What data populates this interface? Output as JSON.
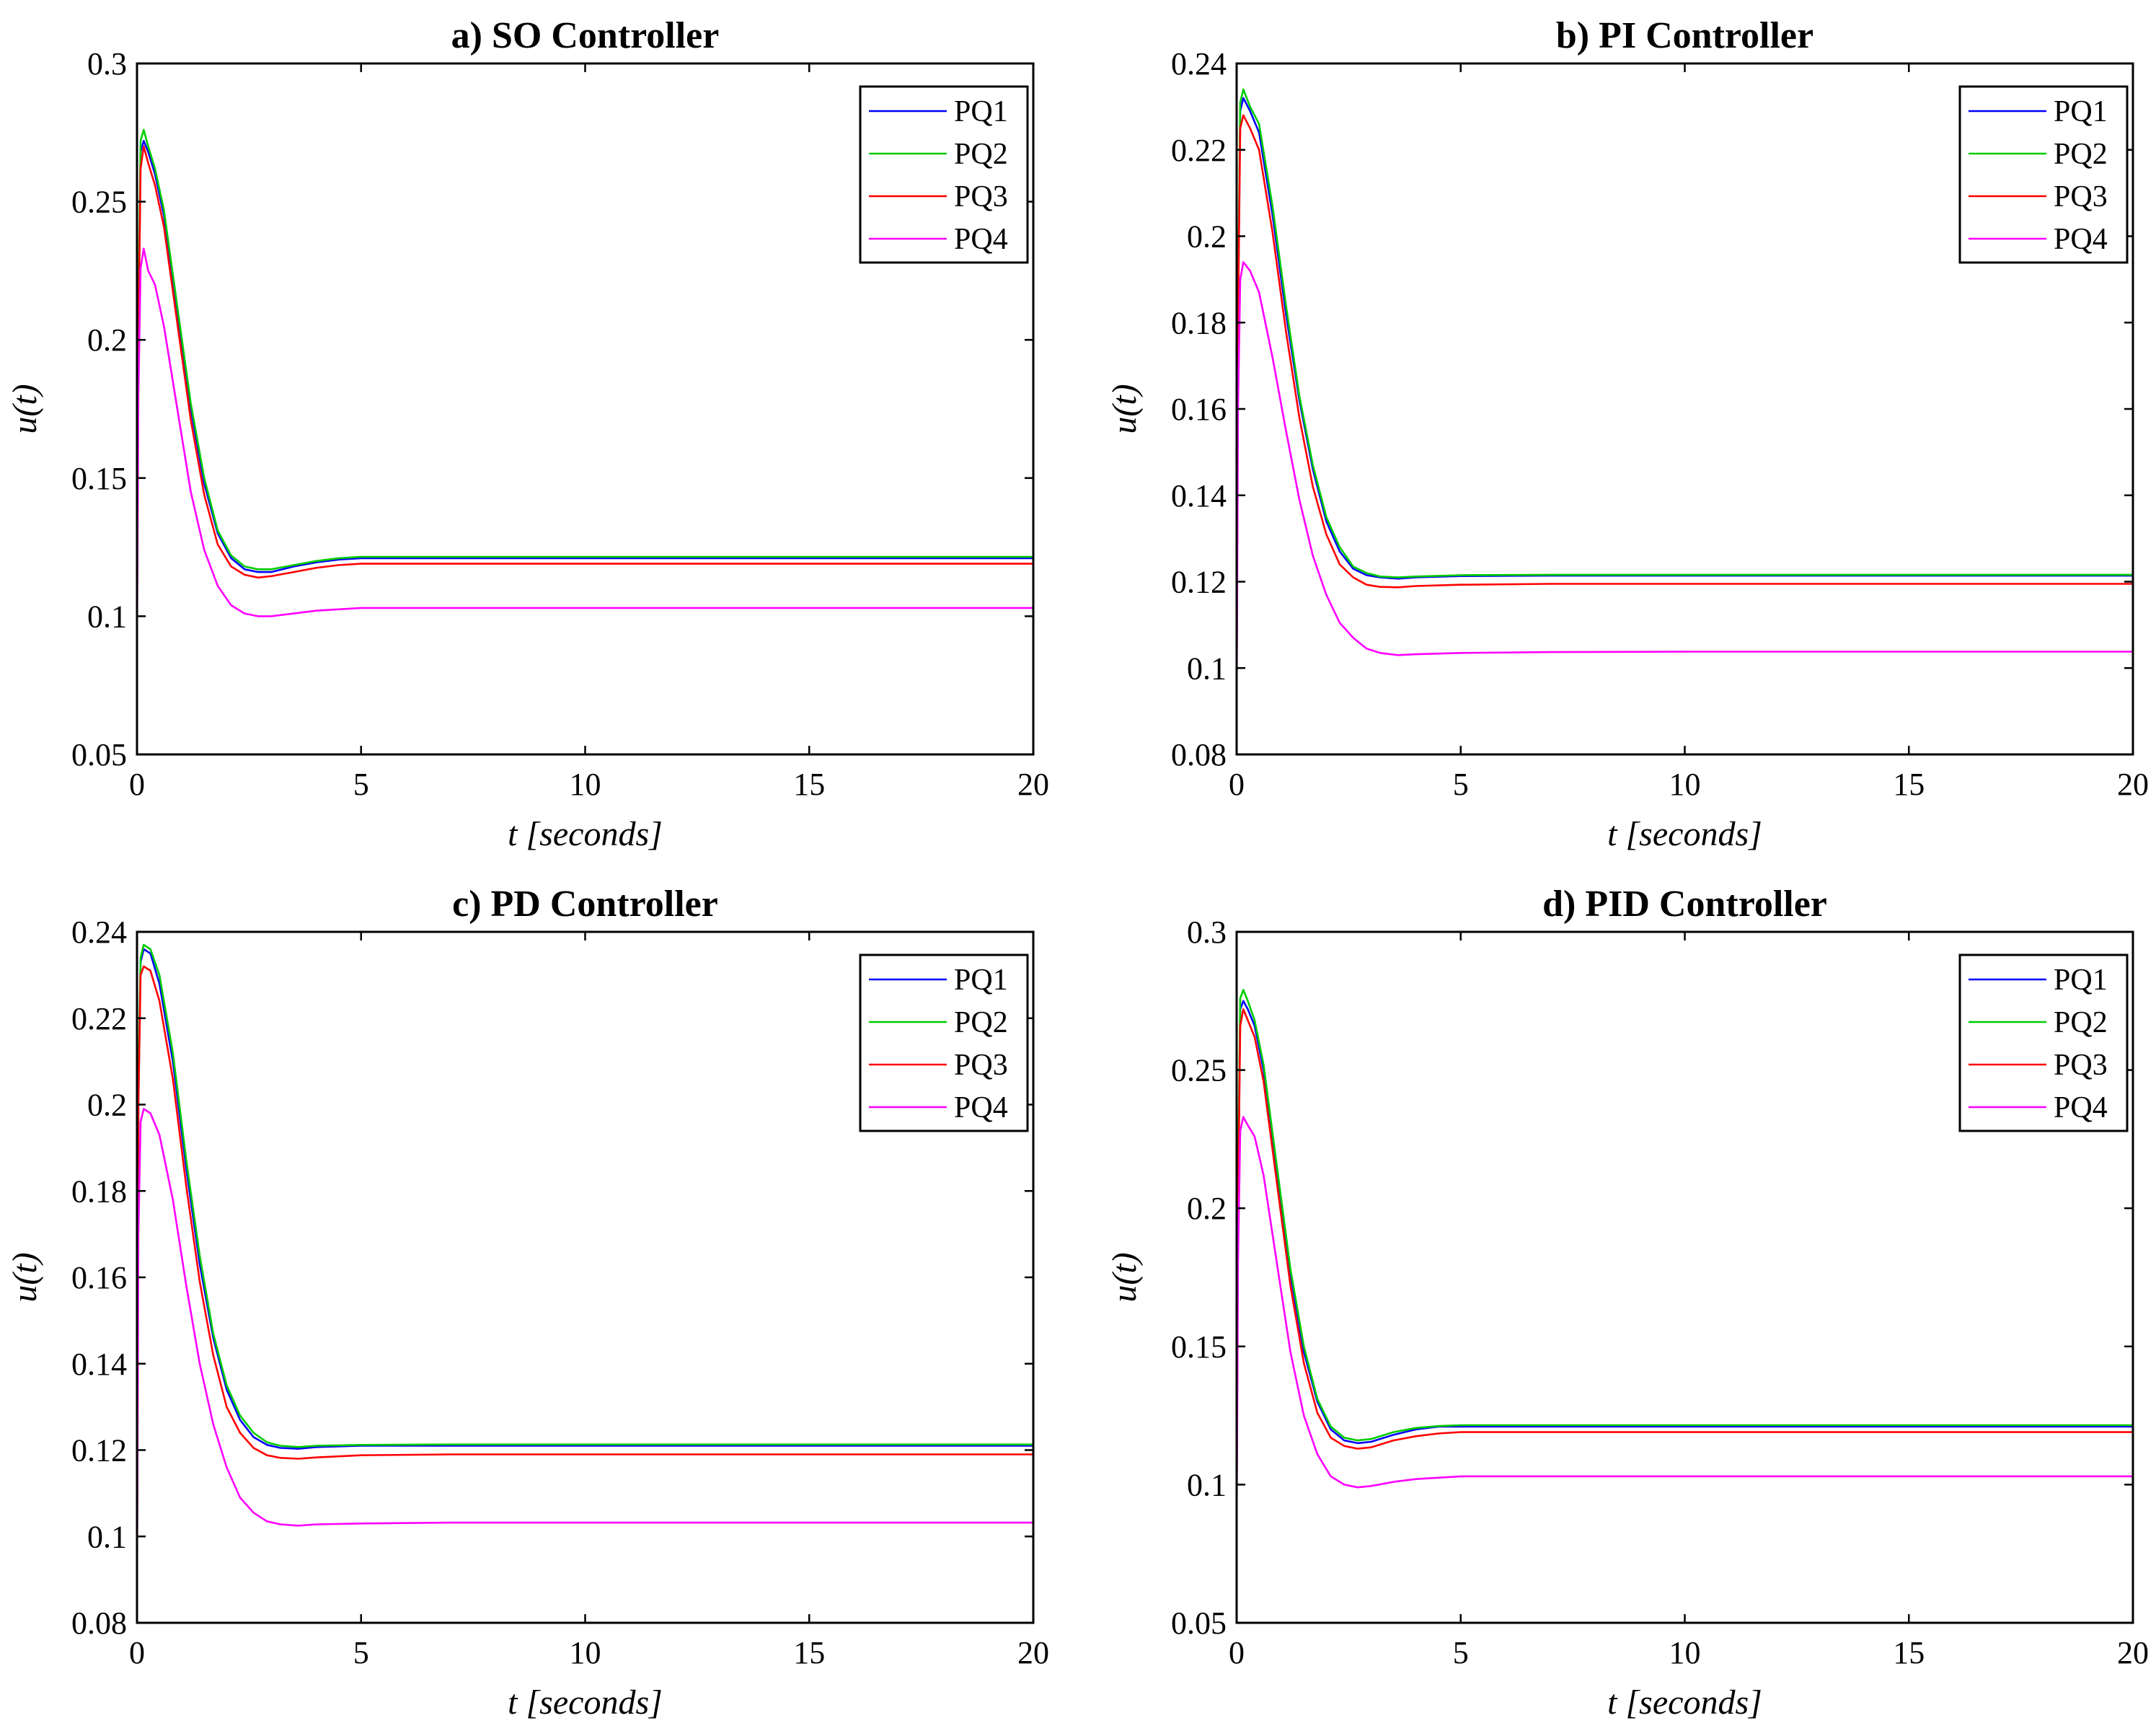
{
  "chart_data": [
    {
      "type": "line",
      "title": "a) SO Controller",
      "xlabel": "t [seconds]",
      "ylabel": "u(t)",
      "xlim": [
        0,
        20
      ],
      "ylim": [
        0.05,
        0.3
      ],
      "xticks": [
        0,
        5,
        10,
        15,
        20
      ],
      "yticks": [
        0.05,
        0.1,
        0.15,
        0.2,
        0.25,
        0.3
      ],
      "ytick_labels": [
        "0.05",
        "0.1",
        "0.15",
        "0.2",
        "0.25",
        "0.3"
      ],
      "legend": "top-right",
      "series": [
        {
          "name": "PQ1",
          "color": "#0000ff",
          "x": [
            0,
            0.03,
            0.08,
            0.15,
            0.25,
            0.4,
            0.6,
            0.9,
            1.2,
            1.5,
            1.8,
            2.1,
            2.4,
            2.7,
            3.0,
            3.5,
            4.0,
            4.5,
            5.0,
            7.0,
            10.0,
            15.0,
            20.0
          ],
          "y": [
            0.1,
            0.2,
            0.268,
            0.272,
            0.268,
            0.26,
            0.245,
            0.21,
            0.175,
            0.148,
            0.13,
            0.121,
            0.117,
            0.116,
            0.116,
            0.118,
            0.1195,
            0.1205,
            0.121,
            0.121,
            0.121,
            0.121,
            0.121
          ]
        },
        {
          "name": "PQ2",
          "color": "#00cc00",
          "x": [
            0,
            0.03,
            0.08,
            0.15,
            0.25,
            0.4,
            0.6,
            0.9,
            1.2,
            1.5,
            1.8,
            2.1,
            2.4,
            2.7,
            3.0,
            3.5,
            4.0,
            4.5,
            5.0,
            7.0,
            10.0,
            15.0,
            20.0
          ],
          "y": [
            0.1,
            0.21,
            0.272,
            0.276,
            0.27,
            0.262,
            0.247,
            0.212,
            0.177,
            0.15,
            0.131,
            0.122,
            0.118,
            0.117,
            0.117,
            0.1185,
            0.12,
            0.121,
            0.1215,
            0.1215,
            0.1215,
            0.1215,
            0.1215
          ]
        },
        {
          "name": "PQ3",
          "color": "#ff0000",
          "x": [
            0,
            0.03,
            0.08,
            0.15,
            0.25,
            0.4,
            0.6,
            0.9,
            1.2,
            1.5,
            1.8,
            2.1,
            2.4,
            2.7,
            3.0,
            3.5,
            4.0,
            4.5,
            5.0,
            7.0,
            10.0,
            15.0,
            20.0
          ],
          "y": [
            0.1,
            0.2,
            0.262,
            0.27,
            0.264,
            0.256,
            0.241,
            0.206,
            0.171,
            0.144,
            0.126,
            0.118,
            0.115,
            0.114,
            0.1145,
            0.116,
            0.1175,
            0.1185,
            0.119,
            0.119,
            0.119,
            0.119,
            0.119
          ]
        },
        {
          "name": "PQ4",
          "color": "#ff00ff",
          "x": [
            0,
            0.03,
            0.08,
            0.15,
            0.25,
            0.4,
            0.6,
            0.9,
            1.2,
            1.5,
            1.8,
            2.1,
            2.4,
            2.7,
            3.0,
            3.5,
            4.0,
            4.5,
            5.0,
            7.0,
            10.0,
            15.0,
            20.0
          ],
          "y": [
            0.09,
            0.18,
            0.226,
            0.233,
            0.225,
            0.22,
            0.205,
            0.175,
            0.145,
            0.124,
            0.111,
            0.104,
            0.101,
            0.1,
            0.1,
            0.101,
            0.102,
            0.1025,
            0.103,
            0.103,
            0.103,
            0.103,
            0.103
          ]
        }
      ]
    },
    {
      "type": "line",
      "title": "b) PI Controller",
      "xlabel": "t [seconds]",
      "ylabel": "u(t)",
      "xlim": [
        0,
        20
      ],
      "ylim": [
        0.08,
        0.24
      ],
      "xticks": [
        0,
        5,
        10,
        15,
        20
      ],
      "yticks": [
        0.08,
        0.1,
        0.12,
        0.14,
        0.16,
        0.18,
        0.2,
        0.22,
        0.24
      ],
      "ytick_labels": [
        "0.08",
        "0.1",
        "0.12",
        "0.14",
        "0.16",
        "0.18",
        "0.2",
        "0.22",
        "0.24"
      ],
      "legend": "top-right",
      "series": [
        {
          "name": "PQ1",
          "color": "#0000ff",
          "x": [
            0,
            0.03,
            0.08,
            0.15,
            0.3,
            0.5,
            0.8,
            1.1,
            1.4,
            1.7,
            2.0,
            2.3,
            2.6,
            2.9,
            3.2,
            3.6,
            4.0,
            5.0,
            7.0,
            10.0,
            15.0,
            20.0
          ],
          "y": [
            0.095,
            0.18,
            0.229,
            0.232,
            0.229,
            0.224,
            0.205,
            0.182,
            0.162,
            0.146,
            0.134,
            0.127,
            0.123,
            0.1215,
            0.121,
            0.1207,
            0.121,
            0.1213,
            0.1214,
            0.1214,
            0.1214,
            0.1214
          ]
        },
        {
          "name": "PQ2",
          "color": "#00cc00",
          "x": [
            0,
            0.03,
            0.08,
            0.15,
            0.3,
            0.5,
            0.8,
            1.1,
            1.4,
            1.7,
            2.0,
            2.3,
            2.6,
            2.9,
            3.2,
            3.6,
            4.0,
            5.0,
            7.0,
            10.0,
            15.0,
            20.0
          ],
          "y": [
            0.095,
            0.185,
            0.231,
            0.234,
            0.23,
            0.226,
            0.207,
            0.184,
            0.163,
            0.147,
            0.135,
            0.128,
            0.1235,
            0.122,
            0.1212,
            0.121,
            0.1212,
            0.1215,
            0.1216,
            0.1216,
            0.1216,
            0.1216
          ]
        },
        {
          "name": "PQ3",
          "color": "#ff0000",
          "x": [
            0,
            0.03,
            0.08,
            0.15,
            0.3,
            0.5,
            0.8,
            1.1,
            1.4,
            1.7,
            2.0,
            2.3,
            2.6,
            2.9,
            3.2,
            3.6,
            4.0,
            5.0,
            7.0,
            10.0,
            15.0,
            20.0
          ],
          "y": [
            0.095,
            0.18,
            0.225,
            0.228,
            0.225,
            0.22,
            0.201,
            0.178,
            0.158,
            0.142,
            0.131,
            0.124,
            0.121,
            0.1193,
            0.1188,
            0.1187,
            0.119,
            0.1193,
            0.1195,
            0.1195,
            0.1195,
            0.1195
          ]
        },
        {
          "name": "PQ4",
          "color": "#ff00ff",
          "x": [
            0,
            0.03,
            0.08,
            0.15,
            0.3,
            0.5,
            0.8,
            1.1,
            1.4,
            1.7,
            2.0,
            2.3,
            2.6,
            2.9,
            3.2,
            3.6,
            4.0,
            5.0,
            7.0,
            10.0,
            15.0,
            20.0
          ],
          "y": [
            0.09,
            0.16,
            0.19,
            0.194,
            0.192,
            0.187,
            0.172,
            0.155,
            0.139,
            0.126,
            0.117,
            0.1105,
            0.107,
            0.1045,
            0.1035,
            0.103,
            0.1032,
            0.1035,
            0.1037,
            0.1038,
            0.1038,
            0.1038
          ]
        }
      ]
    },
    {
      "type": "line",
      "title": "c) PD Controller",
      "xlabel": "t [seconds]",
      "ylabel": "u(t)",
      "xlim": [
        0,
        20
      ],
      "ylim": [
        0.08,
        0.24
      ],
      "xticks": [
        0,
        5,
        10,
        15,
        20
      ],
      "yticks": [
        0.08,
        0.1,
        0.12,
        0.14,
        0.16,
        0.18,
        0.2,
        0.22,
        0.24
      ],
      "ytick_labels": [
        "0.08",
        "0.1",
        "0.12",
        "0.14",
        "0.16",
        "0.18",
        "0.2",
        "0.22",
        "0.24"
      ],
      "legend": "top-right",
      "series": [
        {
          "name": "PQ1",
          "color": "#0000ff",
          "x": [
            0,
            0.03,
            0.08,
            0.15,
            0.3,
            0.5,
            0.8,
            1.1,
            1.4,
            1.7,
            2.0,
            2.3,
            2.6,
            2.9,
            3.2,
            3.6,
            4.0,
            5.0,
            7.0,
            10.0,
            15.0,
            20.0
          ],
          "y": [
            0.09,
            0.2,
            0.233,
            0.236,
            0.235,
            0.228,
            0.21,
            0.185,
            0.163,
            0.146,
            0.134,
            0.127,
            0.123,
            0.1212,
            0.1205,
            0.1203,
            0.1207,
            0.121,
            0.121,
            0.121,
            0.121,
            0.121
          ]
        },
        {
          "name": "PQ2",
          "color": "#00cc00",
          "x": [
            0,
            0.03,
            0.08,
            0.15,
            0.3,
            0.5,
            0.8,
            1.1,
            1.4,
            1.7,
            2.0,
            2.3,
            2.6,
            2.9,
            3.2,
            3.6,
            4.0,
            5.0,
            7.0,
            10.0,
            15.0,
            20.0
          ],
          "y": [
            0.09,
            0.205,
            0.234,
            0.237,
            0.236,
            0.23,
            0.212,
            0.187,
            0.165,
            0.147,
            0.135,
            0.128,
            0.124,
            0.1218,
            0.121,
            0.1207,
            0.121,
            0.1212,
            0.1213,
            0.1213,
            0.1213,
            0.1213
          ]
        },
        {
          "name": "PQ3",
          "color": "#ff0000",
          "x": [
            0,
            0.03,
            0.08,
            0.15,
            0.3,
            0.5,
            0.8,
            1.1,
            1.4,
            1.7,
            2.0,
            2.3,
            2.6,
            2.9,
            3.2,
            3.6,
            4.0,
            5.0,
            7.0,
            10.0,
            15.0,
            20.0
          ],
          "y": [
            0.09,
            0.2,
            0.23,
            0.232,
            0.231,
            0.224,
            0.206,
            0.181,
            0.159,
            0.142,
            0.13,
            0.124,
            0.1205,
            0.1188,
            0.1182,
            0.118,
            0.1183,
            0.1188,
            0.119,
            0.119,
            0.119,
            0.119
          ]
        },
        {
          "name": "PQ4",
          "color": "#ff00ff",
          "x": [
            0,
            0.03,
            0.08,
            0.15,
            0.3,
            0.5,
            0.8,
            1.1,
            1.4,
            1.7,
            2.0,
            2.3,
            2.6,
            2.9,
            3.2,
            3.6,
            4.0,
            5.0,
            7.0,
            10.0,
            15.0,
            20.0
          ],
          "y": [
            0.088,
            0.17,
            0.196,
            0.199,
            0.198,
            0.193,
            0.178,
            0.158,
            0.14,
            0.126,
            0.116,
            0.109,
            0.1055,
            0.1035,
            0.1028,
            0.1025,
            0.1028,
            0.103,
            0.1032,
            0.1032,
            0.1032,
            0.1032
          ]
        }
      ]
    },
    {
      "type": "line",
      "title": "d) PID Controller",
      "xlabel": "t [seconds]",
      "ylabel": "u(t)",
      "xlim": [
        0,
        20
      ],
      "ylim": [
        0.05,
        0.3
      ],
      "xticks": [
        0,
        5,
        10,
        15,
        20
      ],
      "yticks": [
        0.05,
        0.1,
        0.15,
        0.2,
        0.25,
        0.3
      ],
      "ytick_labels": [
        "0.05",
        "0.1",
        "0.15",
        "0.2",
        "0.25",
        "0.3"
      ],
      "legend": "top-right",
      "series": [
        {
          "name": "PQ1",
          "color": "#0000ff",
          "x": [
            0,
            0.03,
            0.08,
            0.15,
            0.25,
            0.4,
            0.6,
            0.9,
            1.2,
            1.5,
            1.8,
            2.1,
            2.4,
            2.7,
            3.0,
            3.5,
            4.0,
            4.5,
            5.0,
            7.0,
            10.0,
            15.0,
            20.0
          ],
          "y": [
            0.09,
            0.2,
            0.272,
            0.275,
            0.272,
            0.266,
            0.25,
            0.213,
            0.176,
            0.148,
            0.13,
            0.12,
            0.116,
            0.115,
            0.1155,
            0.118,
            0.12,
            0.121,
            0.121,
            0.121,
            0.121,
            0.121,
            0.121
          ]
        },
        {
          "name": "PQ2",
          "color": "#00cc00",
          "x": [
            0,
            0.03,
            0.08,
            0.15,
            0.25,
            0.4,
            0.6,
            0.9,
            1.2,
            1.5,
            1.8,
            2.1,
            2.4,
            2.7,
            3.0,
            3.5,
            4.0,
            4.5,
            5.0,
            7.0,
            10.0,
            15.0,
            20.0
          ],
          "y": [
            0.09,
            0.21,
            0.276,
            0.279,
            0.275,
            0.268,
            0.252,
            0.215,
            0.178,
            0.15,
            0.131,
            0.121,
            0.117,
            0.116,
            0.1165,
            0.119,
            0.1205,
            0.1212,
            0.1215,
            0.1215,
            0.1215,
            0.1215,
            0.1215
          ]
        },
        {
          "name": "PQ3",
          "color": "#ff0000",
          "x": [
            0,
            0.03,
            0.08,
            0.15,
            0.25,
            0.4,
            0.6,
            0.9,
            1.2,
            1.5,
            1.8,
            2.1,
            2.4,
            2.7,
            3.0,
            3.5,
            4.0,
            4.5,
            5.0,
            7.0,
            10.0,
            15.0,
            20.0
          ],
          "y": [
            0.09,
            0.2,
            0.266,
            0.272,
            0.268,
            0.262,
            0.246,
            0.209,
            0.172,
            0.144,
            0.126,
            0.117,
            0.114,
            0.113,
            0.1135,
            0.116,
            0.1175,
            0.1185,
            0.119,
            0.119,
            0.119,
            0.119,
            0.119
          ]
        },
        {
          "name": "PQ4",
          "color": "#ff00ff",
          "x": [
            0,
            0.03,
            0.08,
            0.15,
            0.25,
            0.4,
            0.6,
            0.9,
            1.2,
            1.5,
            1.8,
            2.1,
            2.4,
            2.7,
            3.0,
            3.5,
            4.0,
            4.5,
            5.0,
            7.0,
            10.0,
            15.0,
            20.0
          ],
          "y": [
            0.085,
            0.18,
            0.228,
            0.233,
            0.23,
            0.226,
            0.212,
            0.18,
            0.148,
            0.125,
            0.111,
            0.103,
            0.1,
            0.099,
            0.0995,
            0.101,
            0.102,
            0.1025,
            0.103,
            0.103,
            0.103,
            0.103,
            0.103
          ]
        }
      ]
    }
  ]
}
